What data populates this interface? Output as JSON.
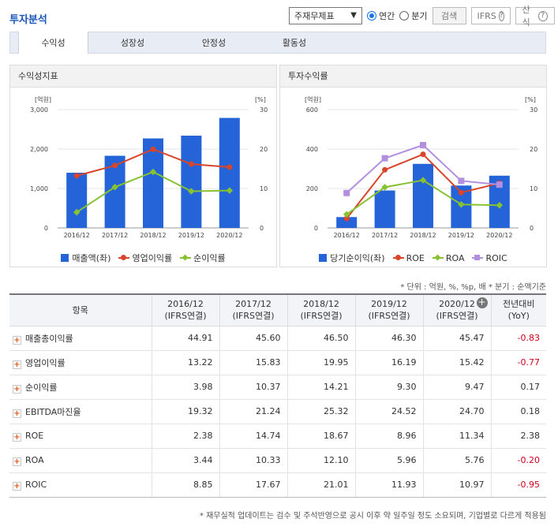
{
  "title": "투자분석",
  "controls": {
    "select_value": "주재무제표",
    "radio_annual": "연간",
    "radio_quarter": "분기",
    "search_button": "검색",
    "ifrs_button": "IFRS",
    "formula_button": "산식"
  },
  "tabs": [
    "수익성",
    "성장성",
    "안정성",
    "활동성"
  ],
  "left_panel": {
    "title": "수익성지표"
  },
  "right_panel": {
    "title": "투자수익률"
  },
  "chart_data": [
    {
      "type": "bar",
      "categories": [
        "2016/12",
        "2017/12",
        "2018/12",
        "2019/12",
        "2020/12"
      ],
      "y_left_label": "[억원]",
      "y_right_label": "[%]",
      "y_left_ticks": [
        "3,000",
        "2,000",
        "1,000",
        "0"
      ],
      "y_right_ticks": [
        "30",
        "20",
        "10",
        "0"
      ],
      "ylim_left": [
        0,
        3000
      ],
      "ylim_right": [
        0,
        30
      ],
      "series": [
        {
          "name": "매출액(좌)",
          "type": "bar",
          "axis": "left",
          "color": "#2464d8",
          "values": [
            1400,
            1830,
            2270,
            2340,
            2790
          ]
        },
        {
          "name": "영업이익률",
          "type": "line",
          "axis": "right",
          "color": "#d8452a",
          "marker": "circle",
          "values": [
            13.22,
            15.83,
            19.95,
            16.19,
            15.42
          ]
        },
        {
          "name": "순이익률",
          "type": "line",
          "axis": "right",
          "color": "#86c232",
          "marker": "diamond",
          "values": [
            3.98,
            10.37,
            14.21,
            9.3,
            9.47
          ]
        }
      ],
      "grid": true,
      "legend": "bottom"
    },
    {
      "type": "bar",
      "categories": [
        "2016/12",
        "2017/12",
        "2018/12",
        "2019/12",
        "2020/12"
      ],
      "y_left_label": "[억원]",
      "y_right_label": "[%]",
      "y_left_ticks": [
        "600",
        "400",
        "200",
        "0"
      ],
      "y_right_ticks": [
        "30",
        "20",
        "10",
        "0"
      ],
      "ylim_left": [
        0,
        600
      ],
      "ylim_right": [
        0,
        30
      ],
      "series": [
        {
          "name": "당기순이익(좌)",
          "type": "bar",
          "axis": "left",
          "color": "#2464d8",
          "values": [
            55,
            190,
            325,
            215,
            265
          ]
        },
        {
          "name": "ROE",
          "type": "line",
          "axis": "right",
          "color": "#d8452a",
          "marker": "circle",
          "values": [
            2.38,
            14.74,
            18.67,
            8.96,
            11.34
          ]
        },
        {
          "name": "ROA",
          "type": "line",
          "axis": "right",
          "color": "#86c232",
          "marker": "diamond",
          "values": [
            3.44,
            10.33,
            12.1,
            5.96,
            5.76
          ]
        },
        {
          "name": "ROIC",
          "type": "line",
          "axis": "right",
          "color": "#b38fe0",
          "marker": "square",
          "values": [
            8.85,
            17.67,
            21.01,
            11.93,
            10.97
          ]
        }
      ],
      "grid": true,
      "legend": "bottom"
    }
  ],
  "unit_note": "* 단위 : 억원, %, %p, 배  * 분기 : 순액기준",
  "table": {
    "header_item": "항목",
    "columns": [
      {
        "year": "2016/12",
        "basis": "(IFRS연결)"
      },
      {
        "year": "2017/12",
        "basis": "(IFRS연결)"
      },
      {
        "year": "2018/12",
        "basis": "(IFRS연결)"
      },
      {
        "year": "2019/12",
        "basis": "(IFRS연결)"
      },
      {
        "year": "2020/12",
        "basis": "(IFRS연결)"
      }
    ],
    "yoy_header": [
      "전년대비",
      "(YoY)"
    ],
    "rows": [
      {
        "label": "매출총이익률",
        "values": [
          "44.91",
          "45.60",
          "46.50",
          "46.30",
          "45.47"
        ],
        "yoy": "-0.83"
      },
      {
        "label": "영업이익률",
        "values": [
          "13.22",
          "15.83",
          "19.95",
          "16.19",
          "15.42"
        ],
        "yoy": "-0.77"
      },
      {
        "label": "순이익률",
        "values": [
          "3.98",
          "10.37",
          "14.21",
          "9.30",
          "9.47"
        ],
        "yoy": "0.17"
      },
      {
        "label": "EBITDA마진율",
        "values": [
          "19.32",
          "21.24",
          "25.32",
          "24.52",
          "24.70"
        ],
        "yoy": "0.18"
      },
      {
        "label": "ROE",
        "values": [
          "2.38",
          "14.74",
          "18.67",
          "8.96",
          "11.34"
        ],
        "yoy": "2.38"
      },
      {
        "label": "ROA",
        "values": [
          "3.44",
          "10.33",
          "12.10",
          "5.96",
          "5.76"
        ],
        "yoy": "-0.20"
      },
      {
        "label": "ROIC",
        "values": [
          "8.85",
          "17.67",
          "21.01",
          "11.93",
          "10.97"
        ],
        "yoy": "-0.95"
      }
    ]
  },
  "footer_note": "* 재무실적 업데이트는 검수 및 주석반영으로 공시 이후 약 일주일 정도 소요되며, 기업별로 다르게 적용됨"
}
